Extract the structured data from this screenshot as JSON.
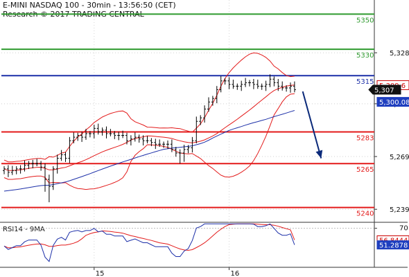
{
  "header": {
    "title": "E-MINI NASDAQ 100 - 30min - 13:56:50 (CET)",
    "copyright": "Research © 2017 TRADING CENTRAL"
  },
  "chart_data": [
    {
      "type": "candlestick",
      "title": "E-MINI NASDAQ 100 - 30min - 13:56:50 (CET)",
      "price_range": [
        5232,
        5358
      ],
      "x_tick_labels": [
        {
          "bar": 22,
          "label": "15"
        },
        {
          "bar": 55,
          "label": "16"
        }
      ],
      "y_ticks": [
        5328,
        5299,
        5269,
        5239
      ],
      "y_tick_labels": [
        "5,328",
        "5,299",
        "5,269",
        "5,239"
      ],
      "levels": [
        {
          "value": 5350,
          "label": "5350",
          "color": "#2e9a2e"
        },
        {
          "value": 5330,
          "label": "5330",
          "color": "#2e9a2e"
        },
        {
          "value": 5315,
          "label": "5315",
          "color": "#1c2fa8"
        },
        {
          "value": 5283,
          "label": "5283",
          "color": "#e31a1a"
        },
        {
          "value": 5265,
          "label": "5265",
          "color": "#e31a1a"
        },
        {
          "value": 5240,
          "label": "5240",
          "color": "#e31a1a"
        }
      ],
      "price_tags": [
        {
          "value": 5309.6,
          "label": "5,309.6",
          "bg": "#ffffff",
          "fg": "#cc0000",
          "border": "#cc0000"
        },
        {
          "value": 5307,
          "label": "5,307",
          "bg": "#111111",
          "fg": "#ffffff",
          "border": "#111111"
        },
        {
          "value": 5300.08,
          "label": "5,300.08",
          "bg": "#1f3fbf",
          "fg": "#ffffff",
          "border": "#1f3fbf"
        }
      ],
      "forecast_arrow": {
        "from_bar": 73,
        "from_value": 5306,
        "to_bar": 77.5,
        "to_value": 5268,
        "color": "#0b2a7a"
      },
      "closes": [
        5262,
        5260,
        5261,
        5262,
        5262,
        5264,
        5265,
        5265,
        5265,
        5263,
        5256,
        5252,
        5262,
        5268,
        5270,
        5268,
        5278,
        5280,
        5281,
        5280,
        5282,
        5282,
        5285,
        5283,
        5284,
        5282,
        5282,
        5281,
        5281,
        5281,
        5278,
        5279,
        5280,
        5279,
        5278,
        5278,
        5277,
        5276,
        5276,
        5276,
        5276,
        5273,
        5271,
        5271,
        5273,
        5274,
        5278,
        5289,
        5291,
        5296,
        5300,
        5302,
        5307,
        5312,
        5312,
        5310,
        5309,
        5309,
        5310,
        5311,
        5311,
        5310,
        5309,
        5309,
        5310,
        5313,
        5311,
        5309,
        5308,
        5308,
        5309,
        5307
      ],
      "series": [
        {
          "name": "price",
          "color": "#000000"
        },
        {
          "name": "moving average",
          "color": "#1c2fa8"
        },
        {
          "name": "bollinger middle",
          "color": "#e31a1a"
        },
        {
          "name": "bollinger upper",
          "color": "#e31a1a"
        },
        {
          "name": "bollinger lower",
          "color": "#e31a1a"
        }
      ]
    },
    {
      "type": "line",
      "title": "RSI14 - 9MA",
      "y_range": [
        26,
        76
      ],
      "y_ticks": [
        {
          "value": 70,
          "label": "70"
        }
      ],
      "rsi_tag": {
        "value": 51.2878,
        "label": "51.2878",
        "bg": "#1f3fbf",
        "fg": "#ffffff"
      },
      "ma_tag": {
        "value": 56.8444,
        "label": "56.8444",
        "bg": "#ffffff",
        "fg": "#cc0000"
      },
      "series": [
        {
          "name": "RSI14",
          "color": "#1c2fa8"
        },
        {
          "name": "9MA",
          "color": "#e31a1a"
        }
      ]
    }
  ]
}
